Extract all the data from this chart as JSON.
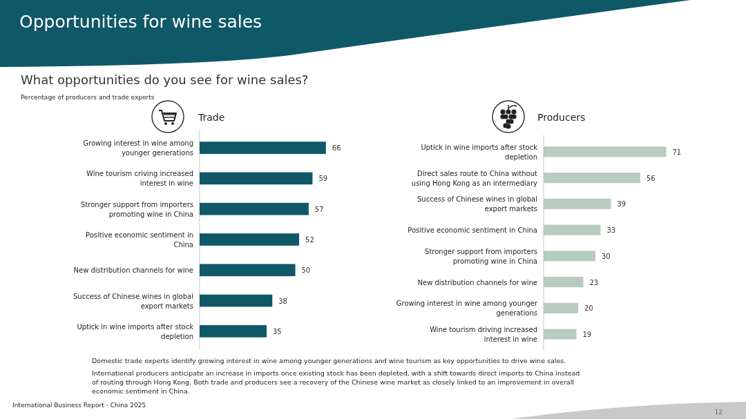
{
  "chart_data": [
    {
      "type": "bar",
      "orientation": "horizontal",
      "title": "Trade",
      "data_labels": true,
      "categories": [
        "Growing interest in wine among younger generations",
        "Wine tourism criving increased interest in wine",
        "Stronger support from importers promoting wine in China",
        "Positive economic sentiment in China",
        "New distribution channels for wine",
        "Success of Chinese wines in global export markets",
        "Uptick in wine imports after stock depletion"
      ],
      "values": [
        66,
        59,
        57,
        52,
        50,
        38,
        35
      ],
      "color": "#0f5868"
    },
    {
      "type": "bar",
      "orientation": "horizontal",
      "title": "Producers",
      "data_labels": true,
      "categories": [
        "Uptick in wine imports after stock depletion",
        "Direct sales route to China without using Hong Kong as an intermediary",
        "Success of Chinese wines in global export markets",
        "Positive economic sentiment in China",
        "Stronger support from importers promoting wine in China",
        "New distribution channels for wine",
        "Growing interest in wine among younger generations",
        "Wine tourism driving increased interest in wine"
      ],
      "values": [
        71,
        56,
        39,
        33,
        30,
        23,
        20,
        19
      ],
      "color": "#b7cbbf"
    },
    {
      "type": "other",
      "title": "Opportunities for wine sales",
      "subtitle": "What opportunities do you see for wine sales?",
      "annotations": [
        "Percentage of producers and trade experts",
        "Domestic trade experts identify growing interest in wine among younger generations and wine tourism as key opportunities to drive wine sales.",
        "International producers anticipate an increase in imports once existing stock has been depleted, with a shift towards direct imports to China instead of routing through Hong Kong. Both trade and producers see a recovery of the Chinese wine market as closely linked to an improvement in overall economic sentiment in China.",
        "International Business Report - China 2025",
        "12"
      ]
    }
  ]
}
